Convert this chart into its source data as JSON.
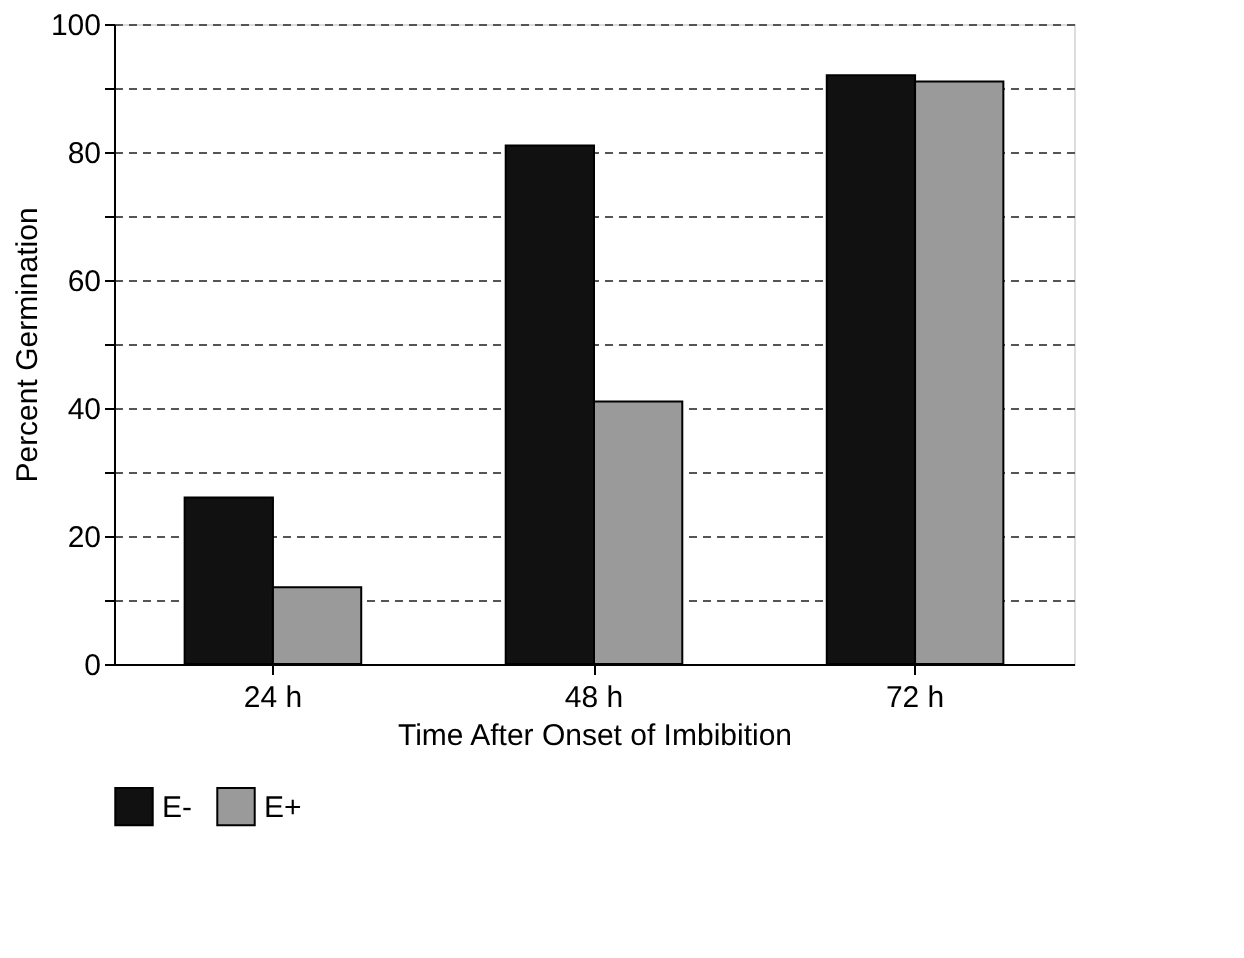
{
  "chart_data": {
    "type": "bar",
    "xlabel": "Time After Onset of Imbibition",
    "ylabel": "Percent Germination",
    "categories": [
      "24 h",
      "48 h",
      "72 h"
    ],
    "series": [
      {
        "name": "E-",
        "color": "#111111",
        "values": [
          26,
          81,
          92
        ]
      },
      {
        "name": "E+",
        "color": "#9a9a9a",
        "values": [
          12,
          41,
          91
        ]
      }
    ],
    "ylim": [
      0,
      100
    ],
    "yticks": [
      0,
      {
        "value": 10,
        "label": null
      },
      20,
      {
        "value": 30,
        "label": null
      },
      40,
      {
        "value": 50,
        "label": null
      },
      60,
      {
        "value": 70,
        "label": null
      },
      80,
      {
        "value": 90,
        "label": null
      },
      100
    ],
    "grid": "y",
    "legend": "bottom"
  }
}
